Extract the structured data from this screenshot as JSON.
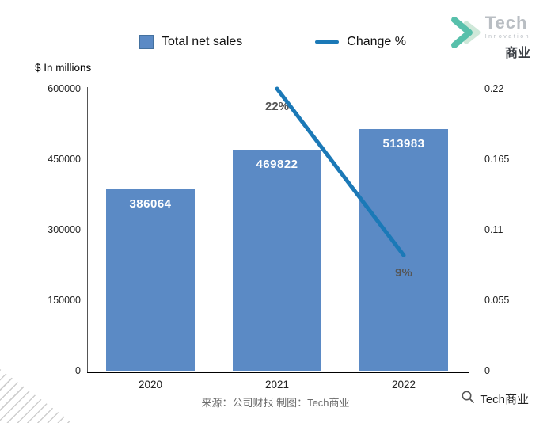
{
  "logo": {
    "brand": "Tech",
    "sub": "Innovation",
    "cn": "商业"
  },
  "legend": [
    {
      "label": "Total net sales",
      "type": "bar"
    },
    {
      "label": "Change %",
      "type": "line"
    }
  ],
  "chart_data": {
    "type": "bar",
    "subtype": "bar+line combo",
    "categories": [
      "2020",
      "2021",
      "2022"
    ],
    "series": [
      {
        "name": "Total net sales",
        "type": "bar",
        "axis": "left",
        "values": [
          386064,
          469822,
          513983
        ],
        "labels": [
          "386064",
          "469822",
          "513983"
        ],
        "color": "#5b8ac5"
      },
      {
        "name": "Change %",
        "type": "line",
        "axis": "right",
        "values": [
          null,
          0.22,
          0.09
        ],
        "labels": [
          null,
          "22%",
          "9%"
        ],
        "color": "#1b79b7"
      }
    ],
    "left_axis": {
      "title": "$ In millions",
      "min": 0,
      "max": 600000,
      "ticks": [
        0,
        150000,
        300000,
        450000,
        600000
      ],
      "tick_labels": [
        "0",
        "150000",
        "300000",
        "450000",
        "600000"
      ]
    },
    "right_axis": {
      "min": 0,
      "max": 0.22,
      "ticks": [
        0,
        0.055,
        0.11,
        0.165,
        0.22
      ],
      "tick_labels": [
        "0",
        "0.055",
        "0.11",
        "0.165",
        "0.22"
      ]
    },
    "grid": false,
    "legend_position": "top"
  },
  "footer": {
    "source": "来源：公司财报 制图：Tech商业"
  },
  "brand_badge": {
    "label": "Tech商业"
  },
  "colors": {
    "bar": "#5b8ac5",
    "line": "#1b79b7"
  }
}
